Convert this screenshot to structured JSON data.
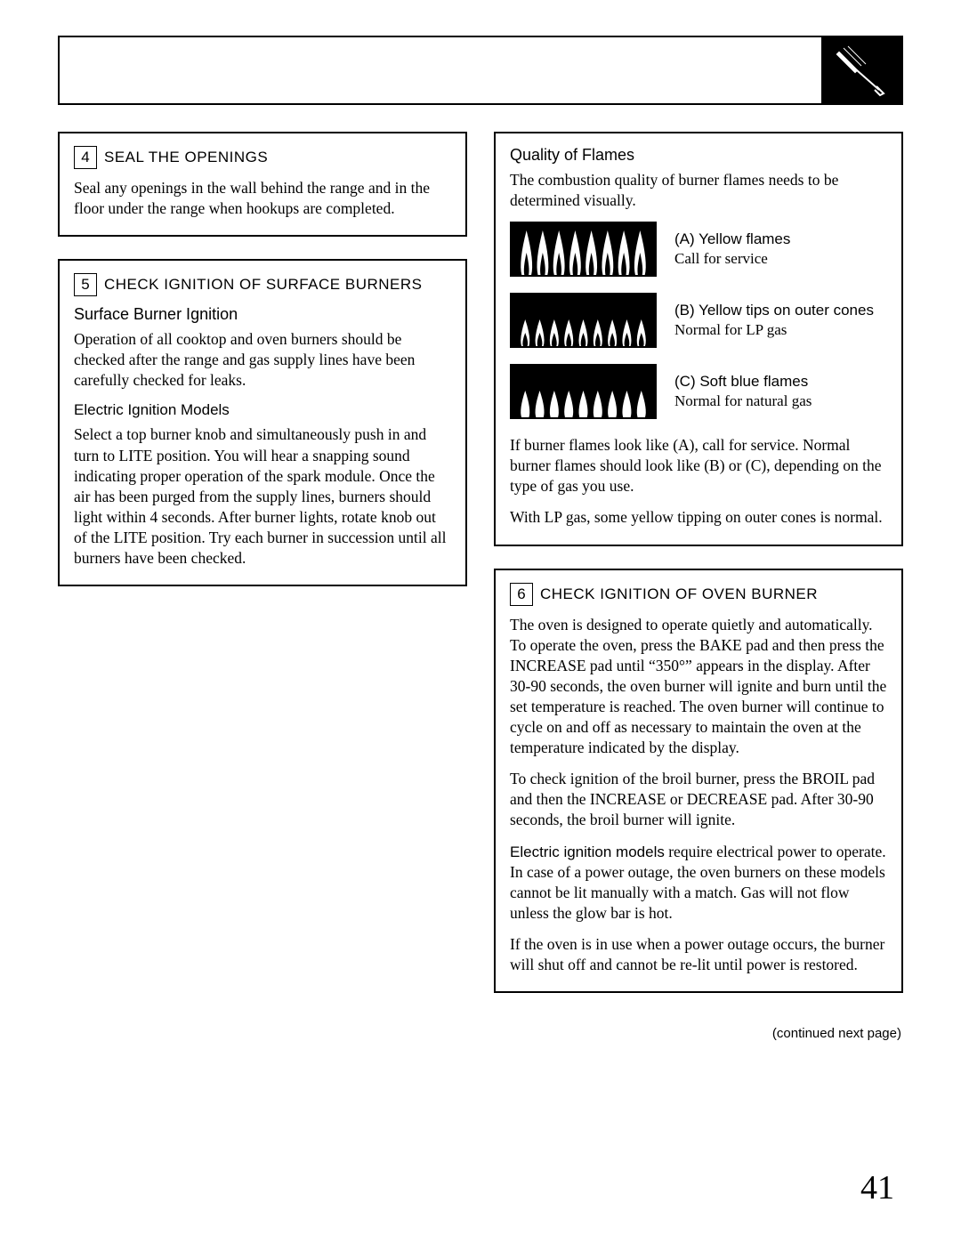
{
  "step4": {
    "num": "4",
    "title": "SEAL THE OPENINGS",
    "text": "Seal any openings in the wall behind the range and in the floor under the range when hookups are completed."
  },
  "step5": {
    "num": "5",
    "title": "CHECK IGNITION OF SURFACE BURNERS",
    "subtitle": "Surface Burner Ignition",
    "intro": "Operation of all cooktop and oven burners should be checked after the range and gas supply lines have been carefully checked for leaks.",
    "eim_title": "Electric Ignition Models",
    "eim_text": "Select a top burner knob and simultaneously push in and turn to LITE position. You will hear a snapping sound indicating proper operation of the spark module. Once the air has been purged from the supply lines, burners should light within 4 seconds. After burner lights, rotate knob out of the LITE position. Try each burner in succession until all burners have been checked."
  },
  "quality": {
    "title": "Quality of Flames",
    "intro": "The combustion quality of burner flames needs to be determined visually.",
    "a_label": "(A) Yellow flames",
    "a_text": "Call for service",
    "b_label": "(B) Yellow tips on outer cones",
    "b_text": "Normal for LP gas",
    "c_label": "(C) Soft blue flames",
    "c_text": "Normal for natural gas",
    "para1": "If burner flames look like (A), call for service. Normal burner flames should look like (B) or (C), depending on the type of gas you use.",
    "para2": "With LP gas, some yellow tipping on outer cones is normal."
  },
  "step6": {
    "num": "6",
    "title": "CHECK IGNITION OF OVEN BURNER",
    "p1": "The oven is designed to operate quietly and automatically. To operate the oven, press the BAKE pad and then press the INCREASE pad until “350°” appears in the display. After 30-90 seconds, the oven burner will ignite and burn until the set temperature is reached. The oven burner will continue to cycle on and off as necessary to maintain the oven at the temperature indicated by the display.",
    "p2": "To check ignition of the broil burner, press the BROIL pad and then the INCREASE or DECREASE pad. After 30-90 seconds, the broil burner will ignite.",
    "p3_lead": "Electric ignition models",
    "p3_rest": " require electrical power to operate. In case of a power outage, the oven burners on these models cannot be lit manually with a match. Gas will not flow unless the glow bar is hot.",
    "p4": "If the oven is in use when a power outage occurs, the burner will shut off and cannot be re-lit until power is restored."
  },
  "continued": "(continued next page)",
  "page_num": "41",
  "flame_svg": {
    "a_count": 8,
    "b_count": 9,
    "c_count": 9
  }
}
